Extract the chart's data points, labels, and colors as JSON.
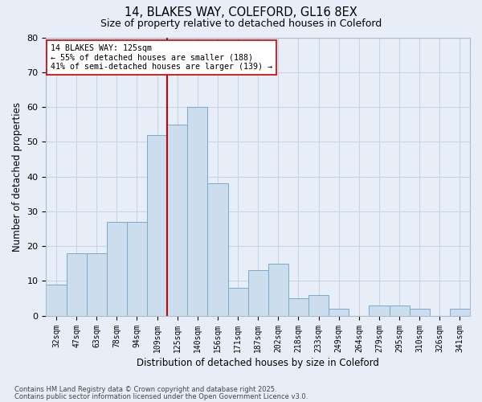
{
  "title1": "14, BLAKES WAY, COLEFORD, GL16 8EX",
  "title2": "Size of property relative to detached houses in Coleford",
  "xlabel": "Distribution of detached houses by size in Coleford",
  "ylabel": "Number of detached properties",
  "categories": [
    "32sqm",
    "47sqm",
    "63sqm",
    "78sqm",
    "94sqm",
    "109sqm",
    "125sqm",
    "140sqm",
    "156sqm",
    "171sqm",
    "187sqm",
    "202sqm",
    "218sqm",
    "233sqm",
    "249sqm",
    "264sqm",
    "279sqm",
    "295sqm",
    "310sqm",
    "326sqm",
    "341sqm"
  ],
  "values": [
    9,
    18,
    18,
    27,
    27,
    52,
    55,
    60,
    38,
    8,
    13,
    15,
    5,
    6,
    2,
    0,
    3,
    3,
    2,
    0,
    2
  ],
  "bar_color": "#ccdded",
  "bar_edge_color": "#7aabcc",
  "highlight_idx": 6,
  "highlight_color": "#cc0000",
  "annotation_text": "14 BLAKES WAY: 125sqm\n← 55% of detached houses are smaller (188)\n41% of semi-detached houses are larger (139) →",
  "annotation_box_color": "white",
  "annotation_box_edge": "#cc0000",
  "ylim": [
    0,
    80
  ],
  "yticks": [
    0,
    10,
    20,
    30,
    40,
    50,
    60,
    70,
    80
  ],
  "grid_color": "#c5d5e5",
  "bg_color": "#e8eef8",
  "footer1": "Contains HM Land Registry data © Crown copyright and database right 2025.",
  "footer2": "Contains public sector information licensed under the Open Government Licence v3.0."
}
